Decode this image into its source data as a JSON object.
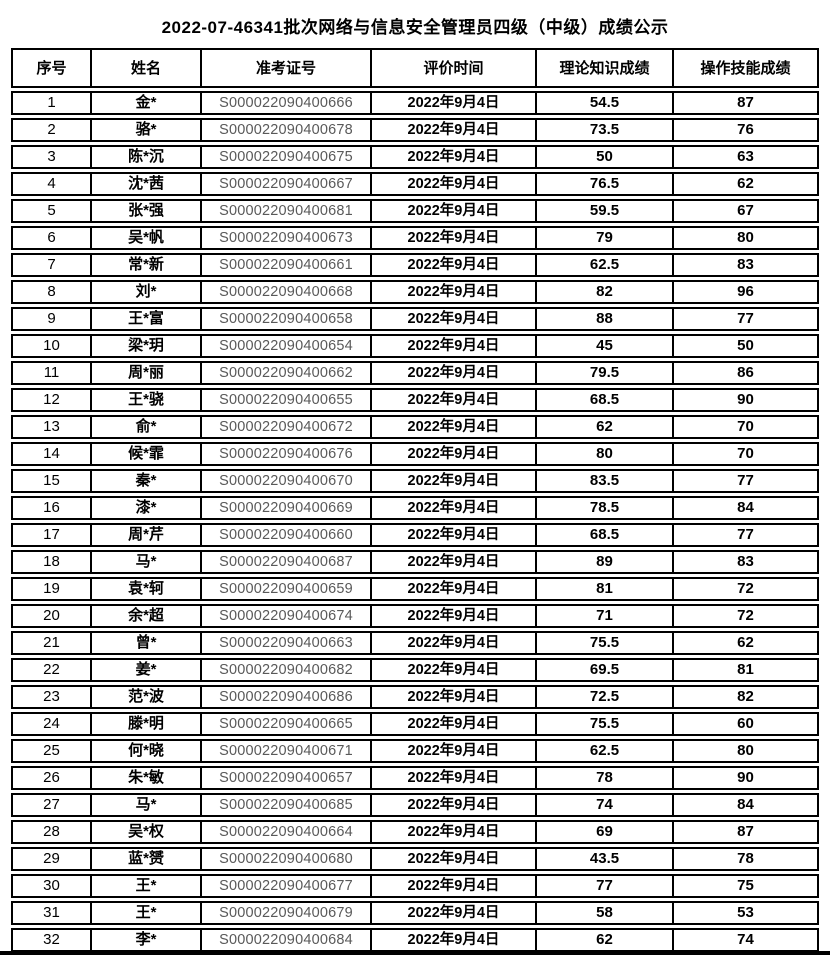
{
  "page": {
    "title": "2022-07-46341批次网络与信息安全管理员四级（中级）成绩公示"
  },
  "table": {
    "headers": {
      "seq": "序号",
      "name": "姓名",
      "ticket": "准考证号",
      "date": "评价时间",
      "theory": "理论知识成绩",
      "skill": "操作技能成绩"
    },
    "rows": [
      {
        "seq": "1",
        "name": "金*",
        "ticket": "S000022090400666",
        "date": "2022年9月4日",
        "theory": "54.5",
        "skill": "87"
      },
      {
        "seq": "2",
        "name": "骆*",
        "ticket": "S000022090400678",
        "date": "2022年9月4日",
        "theory": "73.5",
        "skill": "76"
      },
      {
        "seq": "3",
        "name": "陈*沉",
        "ticket": "S000022090400675",
        "date": "2022年9月4日",
        "theory": "50",
        "skill": "63"
      },
      {
        "seq": "4",
        "name": "沈*茜",
        "ticket": "S000022090400667",
        "date": "2022年9月4日",
        "theory": "76.5",
        "skill": "62"
      },
      {
        "seq": "5",
        "name": "张*强",
        "ticket": "S000022090400681",
        "date": "2022年9月4日",
        "theory": "59.5",
        "skill": "67"
      },
      {
        "seq": "6",
        "name": "吴*帆",
        "ticket": "S000022090400673",
        "date": "2022年9月4日",
        "theory": "79",
        "skill": "80"
      },
      {
        "seq": "7",
        "name": "常*新",
        "ticket": "S000022090400661",
        "date": "2022年9月4日",
        "theory": "62.5",
        "skill": "83"
      },
      {
        "seq": "8",
        "name": "刘*",
        "ticket": "S000022090400668",
        "date": "2022年9月4日",
        "theory": "82",
        "skill": "96"
      },
      {
        "seq": "9",
        "name": "王*富",
        "ticket": "S000022090400658",
        "date": "2022年9月4日",
        "theory": "88",
        "skill": "77"
      },
      {
        "seq": "10",
        "name": "梁*玥",
        "ticket": "S000022090400654",
        "date": "2022年9月4日",
        "theory": "45",
        "skill": "50"
      },
      {
        "seq": "11",
        "name": "周*丽",
        "ticket": "S000022090400662",
        "date": "2022年9月4日",
        "theory": "79.5",
        "skill": "86"
      },
      {
        "seq": "12",
        "name": "王*骁",
        "ticket": "S000022090400655",
        "date": "2022年9月4日",
        "theory": "68.5",
        "skill": "90"
      },
      {
        "seq": "13",
        "name": "俞*",
        "ticket": "S000022090400672",
        "date": "2022年9月4日",
        "theory": "62",
        "skill": "70"
      },
      {
        "seq": "14",
        "name": "候*霏",
        "ticket": "S000022090400676",
        "date": "2022年9月4日",
        "theory": "80",
        "skill": "70"
      },
      {
        "seq": "15",
        "name": "秦*",
        "ticket": "S000022090400670",
        "date": "2022年9月4日",
        "theory": "83.5",
        "skill": "77"
      },
      {
        "seq": "16",
        "name": "漆*",
        "ticket": "S000022090400669",
        "date": "2022年9月4日",
        "theory": "78.5",
        "skill": "84"
      },
      {
        "seq": "17",
        "name": "周*芹",
        "ticket": "S000022090400660",
        "date": "2022年9月4日",
        "theory": "68.5",
        "skill": "77"
      },
      {
        "seq": "18",
        "name": "马*",
        "ticket": "S000022090400687",
        "date": "2022年9月4日",
        "theory": "89",
        "skill": "83"
      },
      {
        "seq": "19",
        "name": "袁*轲",
        "ticket": "S000022090400659",
        "date": "2022年9月4日",
        "theory": "81",
        "skill": "72"
      },
      {
        "seq": "20",
        "name": "余*超",
        "ticket": "S000022090400674",
        "date": "2022年9月4日",
        "theory": "71",
        "skill": "72"
      },
      {
        "seq": "21",
        "name": "曾*",
        "ticket": "S000022090400663",
        "date": "2022年9月4日",
        "theory": "75.5",
        "skill": "62"
      },
      {
        "seq": "22",
        "name": "姜*",
        "ticket": "S000022090400682",
        "date": "2022年9月4日",
        "theory": "69.5",
        "skill": "81"
      },
      {
        "seq": "23",
        "name": "范*波",
        "ticket": "S000022090400686",
        "date": "2022年9月4日",
        "theory": "72.5",
        "skill": "82"
      },
      {
        "seq": "24",
        "name": "滕*明",
        "ticket": "S000022090400665",
        "date": "2022年9月4日",
        "theory": "75.5",
        "skill": "60"
      },
      {
        "seq": "25",
        "name": "何*晓",
        "ticket": "S000022090400671",
        "date": "2022年9月4日",
        "theory": "62.5",
        "skill": "80"
      },
      {
        "seq": "26",
        "name": "朱*敏",
        "ticket": "S000022090400657",
        "date": "2022年9月4日",
        "theory": "78",
        "skill": "90"
      },
      {
        "seq": "27",
        "name": "马*",
        "ticket": "S000022090400685",
        "date": "2022年9月4日",
        "theory": "74",
        "skill": "84"
      },
      {
        "seq": "28",
        "name": "吴*权",
        "ticket": "S000022090400664",
        "date": "2022年9月4日",
        "theory": "69",
        "skill": "87"
      },
      {
        "seq": "29",
        "name": "蓝*赟",
        "ticket": "S000022090400680",
        "date": "2022年9月4日",
        "theory": "43.5",
        "skill": "78"
      },
      {
        "seq": "30",
        "name": "王*",
        "ticket": "S000022090400677",
        "date": "2022年9月4日",
        "theory": "77",
        "skill": "75"
      },
      {
        "seq": "31",
        "name": "王*",
        "ticket": "S000022090400679",
        "date": "2022年9月4日",
        "theory": "58",
        "skill": "53"
      },
      {
        "seq": "32",
        "name": "李*",
        "ticket": "S000022090400684",
        "date": "2022年9月4日",
        "theory": "62",
        "skill": "74"
      }
    ]
  },
  "colors": {
    "border": "#000000",
    "text": "#000000",
    "ticket_text": "#595959",
    "background": "#ffffff"
  }
}
